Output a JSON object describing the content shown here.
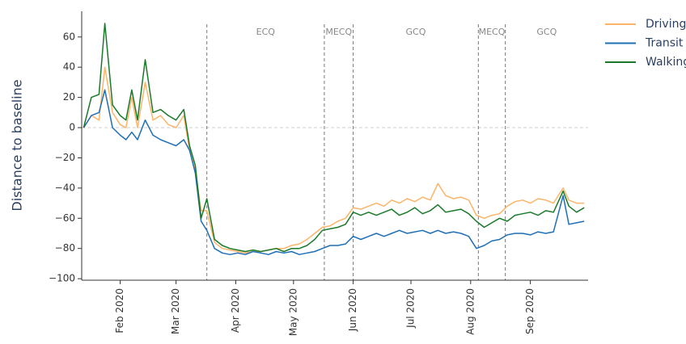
{
  "chart_data": {
    "type": "line",
    "y_label": "Distance to baseline",
    "x": [
      12,
      16,
      20,
      23,
      27,
      31,
      34,
      37,
      40,
      44,
      48,
      52,
      56,
      60,
      64,
      67,
      70,
      73,
      76,
      80,
      84,
      88,
      92,
      96,
      100,
      104,
      108,
      112,
      116,
      120,
      124,
      128,
      132,
      136,
      140,
      144,
      148,
      152,
      156,
      160,
      164,
      168,
      172,
      176,
      180,
      184,
      188,
      192,
      196,
      200,
      204,
      208,
      212,
      216,
      220,
      224,
      228,
      232,
      236,
      240,
      244,
      248,
      252,
      256,
      261,
      264,
      268,
      272
    ],
    "series": [
      {
        "name": "Driving",
        "color": "#fbb46a",
        "values": [
          0,
          8,
          5,
          40,
          10,
          2,
          0,
          20,
          0,
          30,
          5,
          8,
          2,
          0,
          8,
          -15,
          -28,
          -55,
          -55,
          -76,
          -80,
          -81,
          -82,
          -83,
          -82,
          -82,
          -81,
          -80,
          -80,
          -78,
          -77,
          -74,
          -70,
          -66,
          -65,
          -62,
          -60,
          -53,
          -54,
          -52,
          -50,
          -52,
          -48,
          -50,
          -47,
          -49,
          -46,
          -48,
          -37,
          -45,
          -47,
          -46,
          -48,
          -58,
          -60,
          -58,
          -57,
          -52,
          -49,
          -48,
          -50,
          -47,
          -48,
          -50,
          -40,
          -48,
          -50,
          -50
        ]
      },
      {
        "name": "Transit",
        "color": "#1f6fb5",
        "values": [
          0,
          8,
          10,
          25,
          0,
          -5,
          -8,
          -3,
          -8,
          5,
          -5,
          -8,
          -10,
          -12,
          -8,
          -15,
          -30,
          -62,
          -68,
          -80,
          -83,
          -84,
          -83,
          -84,
          -82,
          -83,
          -84,
          -82,
          -83,
          -82,
          -84,
          -83,
          -82,
          -80,
          -78,
          -78,
          -77,
          -72,
          -74,
          -72,
          -70,
          -72,
          -70,
          -68,
          -70,
          -69,
          -68,
          -70,
          -68,
          -70,
          -69,
          -70,
          -72,
          -80,
          -78,
          -75,
          -74,
          -71,
          -70,
          -70,
          -71,
          -69,
          -70,
          -69,
          -45,
          -64,
          -63,
          -62
        ]
      },
      {
        "name": "Walking",
        "color": "#1a7a2a",
        "values": [
          0,
          20,
          22,
          69,
          15,
          8,
          5,
          25,
          5,
          45,
          10,
          12,
          8,
          5,
          12,
          -12,
          -25,
          -60,
          -47,
          -74,
          -78,
          -80,
          -81,
          -82,
          -81,
          -82,
          -81,
          -80,
          -82,
          -80,
          -80,
          -78,
          -74,
          -68,
          -67,
          -66,
          -64,
          -56,
          -58,
          -56,
          -58,
          -56,
          -54,
          -58,
          -56,
          -53,
          -57,
          -55,
          -51,
          -56,
          -55,
          -54,
          -57,
          -62,
          -66,
          -63,
          -60,
          -62,
          -58,
          -57,
          -56,
          -58,
          -55,
          -56,
          -42,
          -52,
          -56,
          -53
        ]
      }
    ],
    "xlim": [
      11,
      274
    ],
    "ylim": [
      -101,
      77
    ],
    "xticks": [
      {
        "value": 31,
        "label": "Feb 2020"
      },
      {
        "value": 60,
        "label": "Mar 2020"
      },
      {
        "value": 91,
        "label": "Apr 2020"
      },
      {
        "value": 121,
        "label": "May 2020"
      },
      {
        "value": 152,
        "label": "Jun 2020"
      },
      {
        "value": 182,
        "label": "Jul 2020"
      },
      {
        "value": 213,
        "label": "Aug 2020"
      },
      {
        "value": 244,
        "label": "Sep 2020"
      }
    ],
    "yticks": [
      {
        "value": -100,
        "label": "−100"
      },
      {
        "value": -80,
        "label": "−80"
      },
      {
        "value": -60,
        "label": "−60"
      },
      {
        "value": -40,
        "label": "−40"
      },
      {
        "value": -20,
        "label": "−20"
      },
      0,
      20,
      40,
      60
    ],
    "baseline": 0,
    "phases": [
      {
        "label": "ECQ",
        "start": 76
      },
      {
        "label": "MECQ",
        "start": 137
      },
      {
        "label": "GCQ",
        "start": 152
      },
      {
        "label": "MECQ",
        "start": 217
      },
      {
        "label": "GCQ",
        "start": 231
      }
    ],
    "legend": "top-right-outside"
  }
}
